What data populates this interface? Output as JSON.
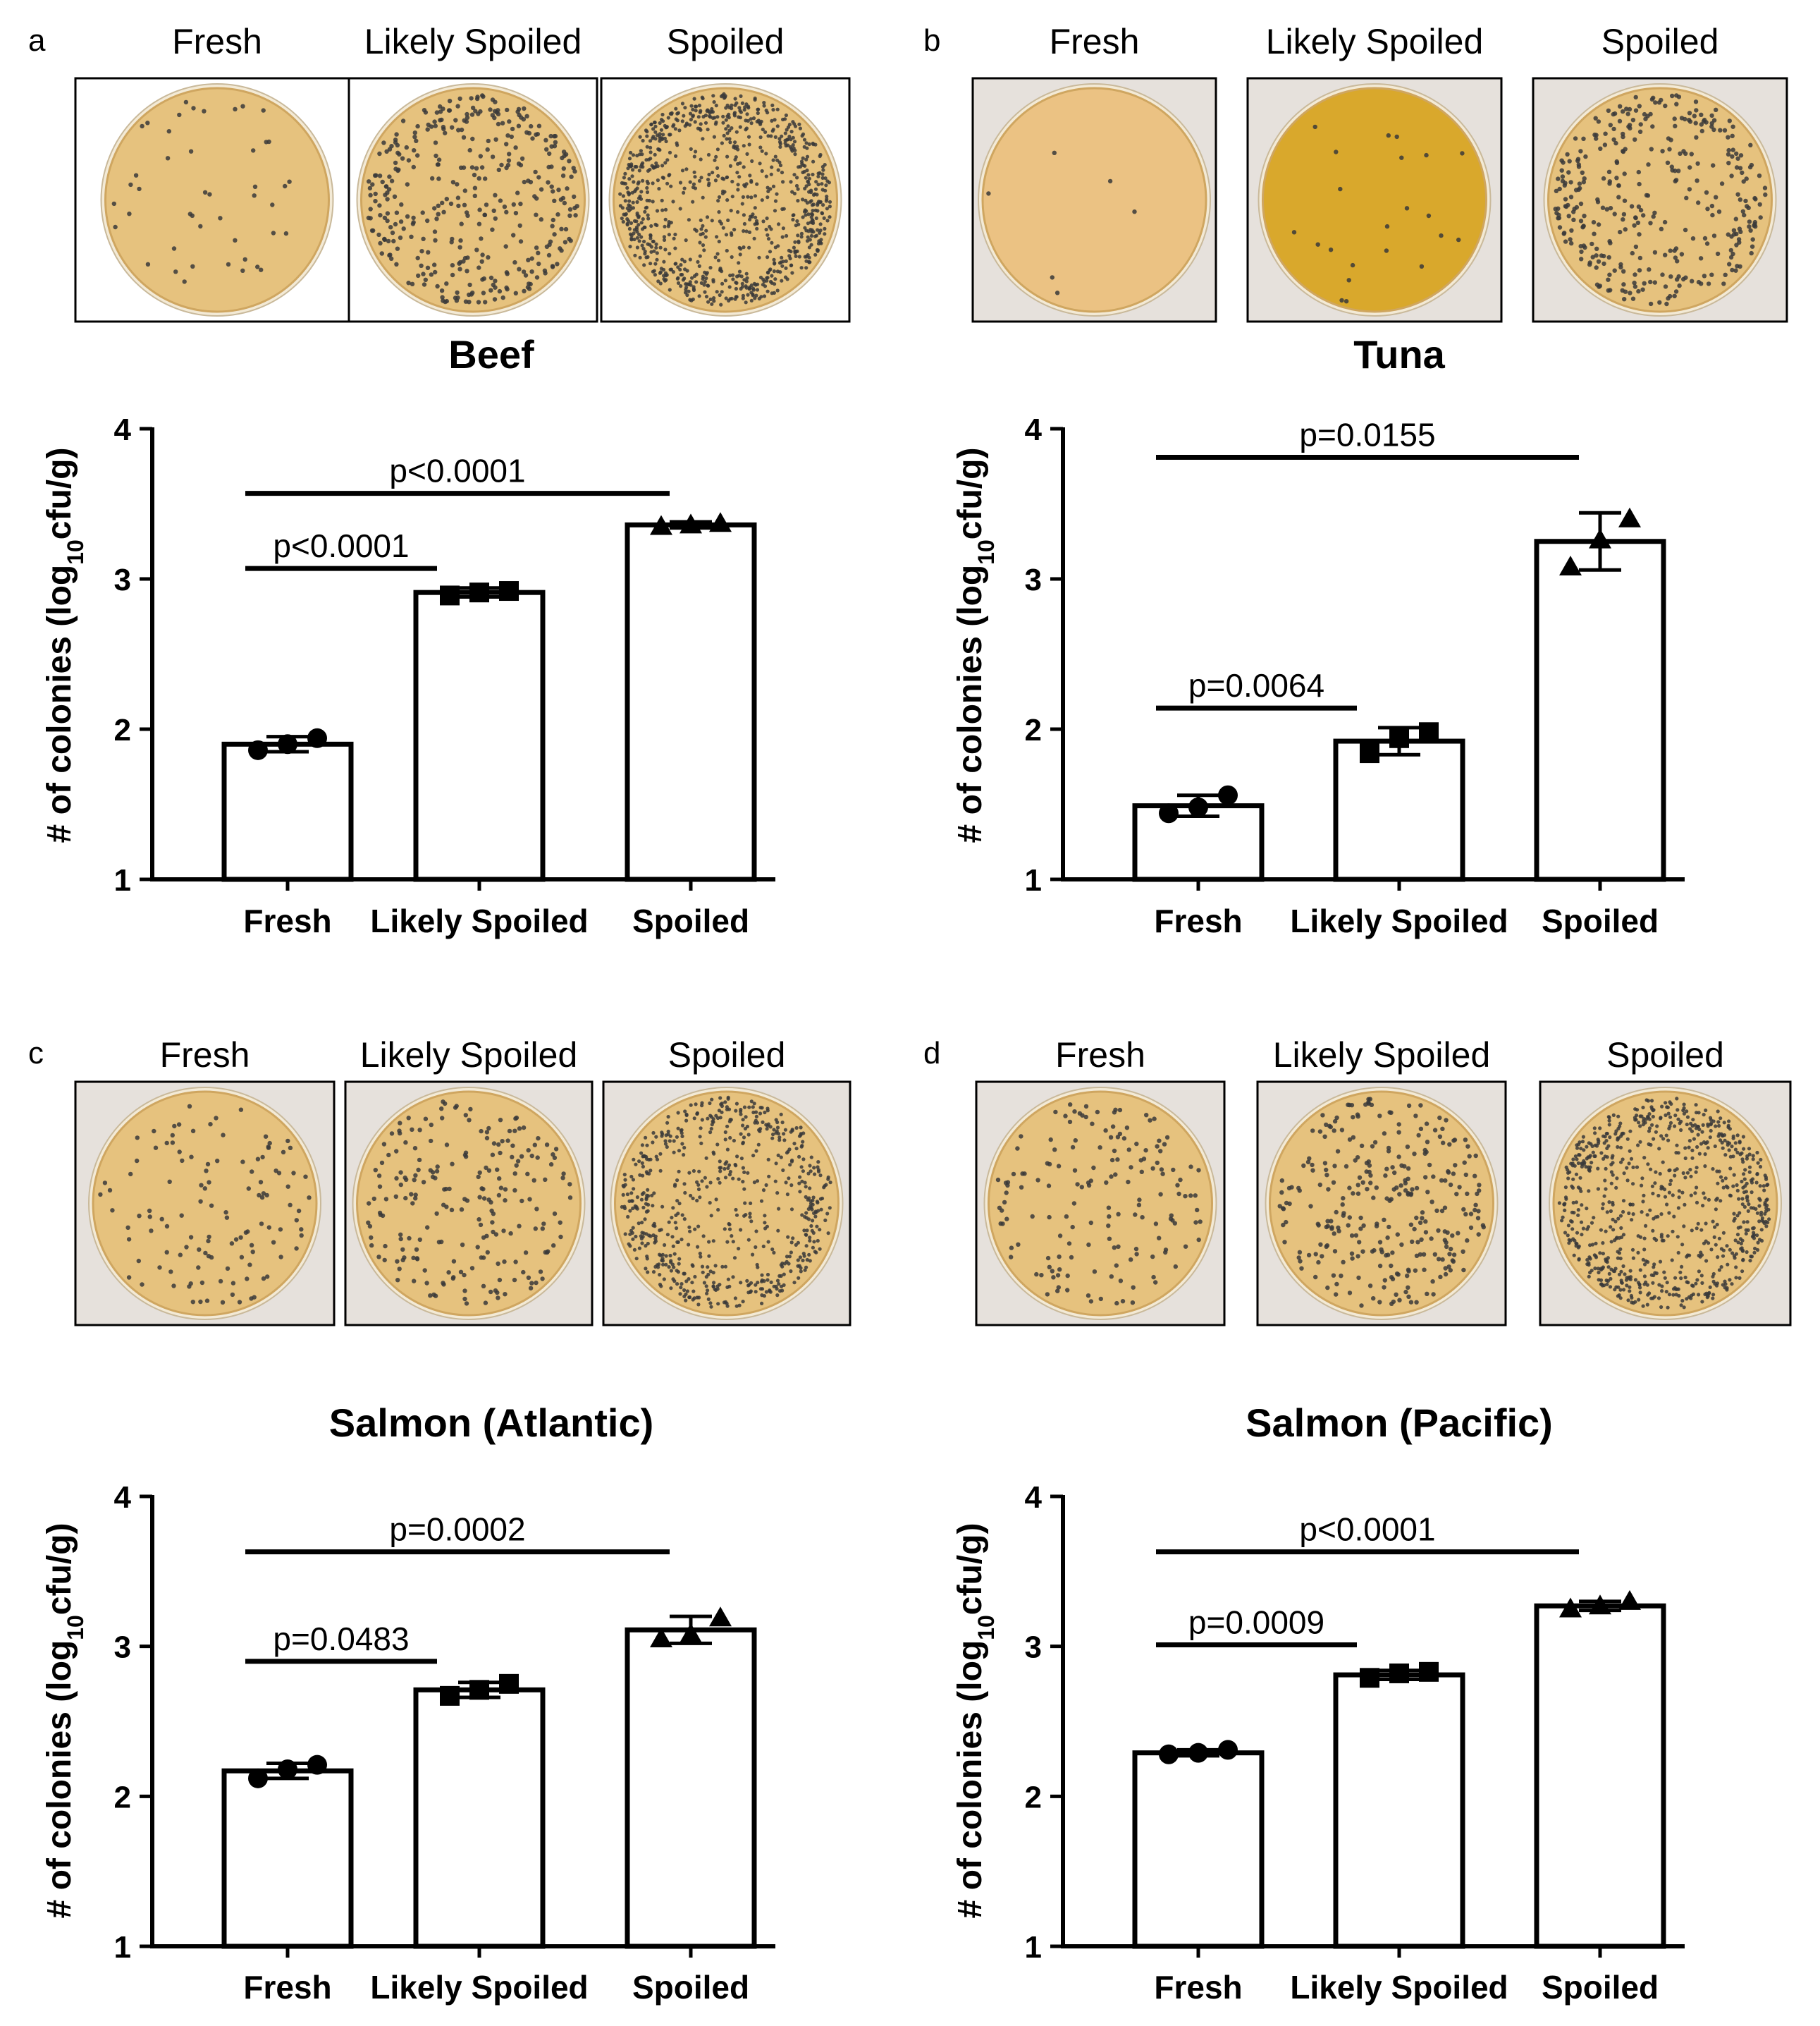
{
  "figure": {
    "plate_labels": [
      "Fresh",
      "Likely Spoiled",
      "Spoiled"
    ]
  },
  "colors": {
    "agar": "#e6c27e",
    "agar_edge": "#cfa660",
    "beef_background": "#ffffff",
    "tuna_background": "#e6e1dc",
    "fresh_tuna_agar": "#ebc283",
    "likely_tuna_agar": "#d9a82c",
    "colony": "#3a3a3a",
    "bar_fill": "#ffffff",
    "stroke": "#000000"
  },
  "chart_data": [
    {
      "type": "bar",
      "panel": "a",
      "title": "Beef",
      "xlabel": "",
      "ylabel": "# of colonies (log",
      "ylabel_sub": "10",
      "ylabel_end": "cfu/g)",
      "ylim": [
        1,
        4
      ],
      "yticks": [
        1,
        2,
        3,
        4
      ],
      "categories": [
        "Fresh",
        "Likely Spoiled",
        "Spoiled"
      ],
      "values": [
        1.9,
        2.91,
        3.36
      ],
      "errors": [
        0.05,
        0.03,
        0.02
      ],
      "markers": [
        "circle",
        "square",
        "triangle"
      ],
      "replicates": [
        [
          1.86,
          1.9,
          1.94
        ],
        [
          2.89,
          2.91,
          2.92
        ],
        [
          3.35,
          3.36,
          3.37
        ]
      ],
      "comparisons": [
        {
          "from": 0,
          "to": 2,
          "level": 3.57,
          "label": "p<0.0001"
        },
        {
          "from": 0,
          "to": 1,
          "level": 3.07,
          "label": "p<0.0001"
        }
      ],
      "plates": [
        {
          "label": "Fresh",
          "density": 45
        },
        {
          "label": "Likely Spoiled",
          "density": 380
        },
        {
          "label": "Spoiled",
          "density": 950
        }
      ]
    },
    {
      "type": "bar",
      "panel": "b",
      "title": "Tuna",
      "xlabel": "",
      "ylabel": "# of colonies (log",
      "ylabel_sub": "10",
      "ylabel_end": "cfu/g)",
      "ylim": [
        1,
        4
      ],
      "yticks": [
        1,
        2,
        3,
        4
      ],
      "categories": [
        "Fresh",
        "Likely Spoiled",
        "Spoiled"
      ],
      "values": [
        1.49,
        1.92,
        3.25
      ],
      "errors": [
        0.07,
        0.09,
        0.19
      ],
      "markers": [
        "circle",
        "square",
        "triangle"
      ],
      "replicates": [
        [
          1.44,
          1.48,
          1.56
        ],
        [
          1.84,
          1.94,
          1.98
        ],
        [
          3.08,
          3.26,
          3.4
        ]
      ],
      "comparisons": [
        {
          "from": 0,
          "to": 2,
          "level": 3.81,
          "label": "p=0.0155"
        },
        {
          "from": 0,
          "to": 1,
          "level": 2.14,
          "label": "p=0.0064"
        }
      ],
      "plates": [
        {
          "label": "Fresh",
          "density": 6
        },
        {
          "label": "Likely Spoiled",
          "density": 22
        },
        {
          "label": "Spoiled",
          "density": 360
        }
      ]
    },
    {
      "type": "bar",
      "panel": "c",
      "title": "Salmon (Atlantic)",
      "xlabel": "",
      "ylabel": "# of colonies (log",
      "ylabel_sub": "10",
      "ylabel_end": "cfu/g)",
      "ylim": [
        1,
        4
      ],
      "yticks": [
        1,
        2,
        3,
        4
      ],
      "categories": [
        "Fresh",
        "Likely Spoiled",
        "Spoiled"
      ],
      "values": [
        2.17,
        2.71,
        3.11
      ],
      "errors": [
        0.05,
        0.05,
        0.09
      ],
      "markers": [
        "circle",
        "square",
        "triangle"
      ],
      "replicates": [
        [
          2.12,
          2.18,
          2.21
        ],
        [
          2.67,
          2.71,
          2.75
        ],
        [
          3.05,
          3.08,
          3.19
        ]
      ],
      "comparisons": [
        {
          "from": 0,
          "to": 2,
          "level": 3.63,
          "label": "p=0.0002"
        },
        {
          "from": 0,
          "to": 1,
          "level": 2.9,
          "label": "p=0.0483"
        }
      ],
      "plates": [
        {
          "label": "Fresh",
          "density": 120
        },
        {
          "label": "Likely Spoiled",
          "density": 220
        },
        {
          "label": "Spoiled",
          "density": 650
        }
      ]
    },
    {
      "type": "bar",
      "panel": "d",
      "title": "Salmon (Pacific)",
      "xlabel": "",
      "ylabel": "# of colonies (log",
      "ylabel_sub": "10",
      "ylabel_end": "cfu/g)",
      "ylim": [
        1,
        4
      ],
      "yticks": [
        1,
        2,
        3,
        4
      ],
      "categories": [
        "Fresh",
        "Likely Spoiled",
        "Spoiled"
      ],
      "values": [
        2.29,
        2.81,
        3.27
      ],
      "errors": [
        0.02,
        0.03,
        0.03
      ],
      "markers": [
        "circle",
        "square",
        "triangle"
      ],
      "replicates": [
        [
          2.28,
          2.29,
          2.31
        ],
        [
          2.79,
          2.82,
          2.83
        ],
        [
          3.25,
          3.27,
          3.3
        ]
      ],
      "comparisons": [
        {
          "from": 0,
          "to": 2,
          "level": 3.63,
          "label": "p<0.0001"
        },
        {
          "from": 0,
          "to": 1,
          "level": 3.01,
          "label": "p=0.0009"
        }
      ],
      "plates": [
        {
          "label": "Fresh",
          "density": 160
        },
        {
          "label": "Likely Spoiled",
          "density": 300
        },
        {
          "label": "Spoiled",
          "density": 800
        }
      ]
    }
  ]
}
